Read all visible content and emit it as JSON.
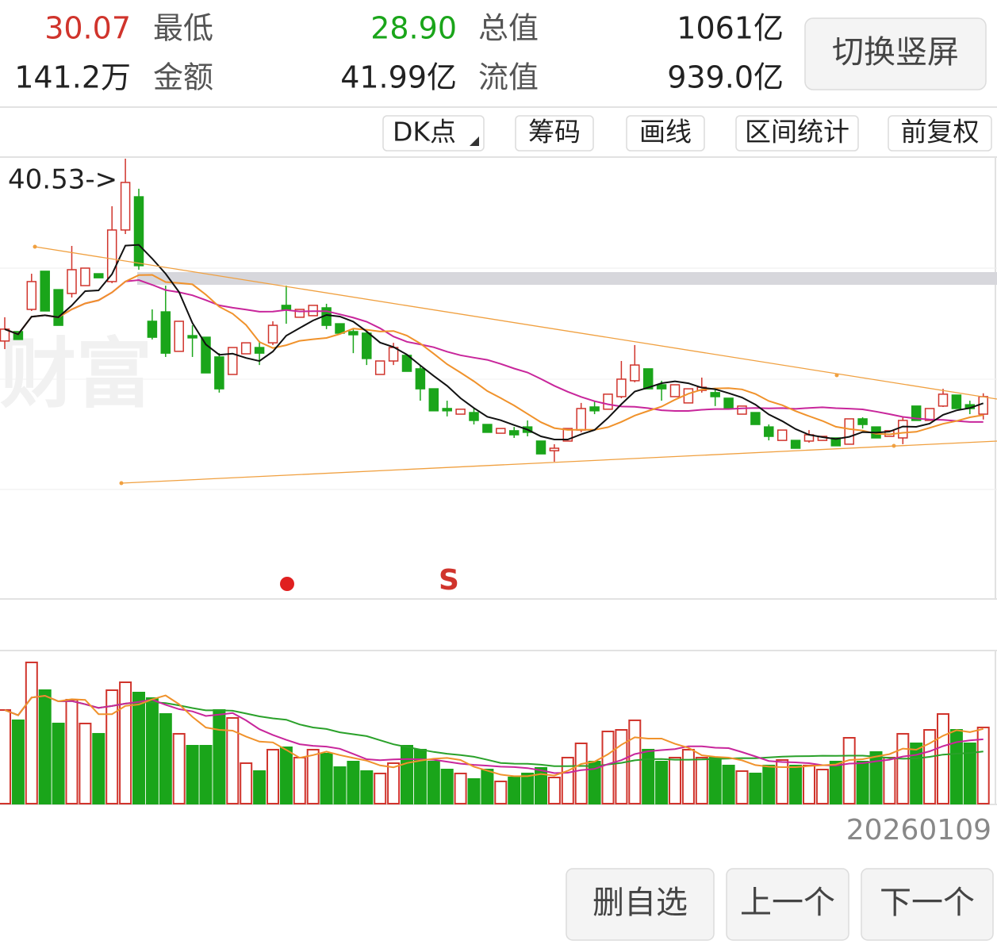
{
  "header": {
    "rows": [
      [
        "30.07",
        "最低",
        "28.90",
        "总值",
        "1061亿"
      ],
      [
        "141.2万",
        "金额",
        "41.99亿",
        "流值",
        "939.0亿"
      ]
    ],
    "button": "切换竖屏"
  },
  "toolbar": [
    "DK点",
    "筹码",
    "画线",
    "区间统计",
    "前复权"
  ],
  "kline": {
    "ylim": [
      20.9,
      40.53
    ],
    "up_color": "#d0342c",
    "down_color": "#1aa51a",
    "high_label": "40.53->",
    "watermark": "财富",
    "signal": "S",
    "candles": [
      [
        32.4,
        32.93,
        33.46,
        32.04
      ],
      [
        32.82,
        32.47,
        32.82,
        32.47
      ],
      [
        33.81,
        35.05,
        35.4,
        33.74
      ],
      [
        35.51,
        33.74,
        35.51,
        33.74
      ],
      [
        34.69,
        33.1,
        34.69,
        33.1
      ],
      [
        34.52,
        35.58,
        36.64,
        34.34
      ],
      [
        34.87,
        35.65,
        35.65,
        34.87
      ],
      [
        35.4,
        35.22,
        35.4,
        35.22
      ],
      [
        35.05,
        37.35,
        38.41,
        34.98
      ],
      [
        37.35,
        39.47,
        40.53,
        37.17
      ],
      [
        38.83,
        35.76,
        39.19,
        35.58
      ],
      [
        33.28,
        32.57,
        33.81,
        32.47
      ],
      [
        33.7,
        31.86,
        34.87,
        31.69
      ],
      [
        31.94,
        33.28,
        33.28,
        31.94
      ],
      [
        32.64,
        32.54,
        33.1,
        31.69
      ],
      [
        32.57,
        30.98,
        32.57,
        30.98
      ],
      [
        31.69,
        30.27,
        31.86,
        30.1
      ],
      [
        30.91,
        32.11,
        32.11,
        30.91
      ],
      [
        31.83,
        32.32,
        32.32,
        31.83
      ],
      [
        32.11,
        31.86,
        32.4,
        31.33
      ],
      [
        32.32,
        33.1,
        33.28,
        32.22
      ],
      [
        33.99,
        33.81,
        34.87,
        33.17
      ],
      [
        33.46,
        33.81,
        33.81,
        33.46
      ],
      [
        33.53,
        33.99,
        33.99,
        33.53
      ],
      [
        33.88,
        33.1,
        34.06,
        32.93
      ],
      [
        33.17,
        32.75,
        33.17,
        32.75
      ],
      [
        32.82,
        32.68,
        32.93,
        31.86
      ],
      [
        32.75,
        31.62,
        32.82,
        31.33
      ],
      [
        30.91,
        31.51,
        31.51,
        30.91
      ],
      [
        31.51,
        32.11,
        32.32,
        31.33
      ],
      [
        31.76,
        31.05,
        31.76,
        31.05
      ],
      [
        31.16,
        30.27,
        31.33,
        29.74
      ],
      [
        30.27,
        29.29,
        30.27,
        29.29
      ],
      [
        29.39,
        29.29,
        29.74,
        29.04
      ],
      [
        29.14,
        29.36,
        29.36,
        29.14
      ],
      [
        29.21,
        28.86,
        29.39,
        28.68
      ],
      [
        28.68,
        28.33,
        28.68,
        28.33
      ],
      [
        28.29,
        28.5,
        28.5,
        28.29
      ],
      [
        28.4,
        28.22,
        28.57,
        28.08
      ],
      [
        28.57,
        28.33,
        28.86,
        28.15
      ],
      [
        27.94,
        27.37,
        27.94,
        27.37
      ],
      [
        27.51,
        27.62,
        27.8,
        27.02
      ],
      [
        27.94,
        28.5,
        28.5,
        27.94
      ],
      [
        28.43,
        29.39,
        29.64,
        28.33
      ],
      [
        29.46,
        29.29,
        29.74,
        29.14
      ],
      [
        29.36,
        30.03,
        30.03,
        29.36
      ],
      [
        29.92,
        30.7,
        31.51,
        29.85
      ],
      [
        30.63,
        31.33,
        32.22,
        30.56
      ],
      [
        31.16,
        30.27,
        31.16,
        30.27
      ],
      [
        30.45,
        30.27,
        30.63,
        29.74
      ],
      [
        29.92,
        30.45,
        30.45,
        29.92
      ],
      [
        29.64,
        30.27,
        30.27,
        29.64
      ],
      [
        30.2,
        30.34,
        30.77,
        30.1
      ],
      [
        30.1,
        29.92,
        30.27,
        29.5
      ],
      [
        29.85,
        29.39,
        29.85,
        29.39
      ],
      [
        29.14,
        29.5,
        29.5,
        29.14
      ],
      [
        29.21,
        28.68,
        29.21,
        28.68
      ],
      [
        28.57,
        28.15,
        28.68,
        27.97
      ],
      [
        27.97,
        28.43,
        28.43,
        27.97
      ],
      [
        27.97,
        27.62,
        27.97,
        27.62
      ],
      [
        27.94,
        28.22,
        28.43,
        27.87
      ],
      [
        27.97,
        28.15,
        28.15,
        27.97
      ],
      [
        28.08,
        27.73,
        28.08,
        27.73
      ],
      [
        27.8,
        28.93,
        28.93,
        27.8
      ],
      [
        28.93,
        28.68,
        29.0,
        28.5
      ],
      [
        28.57,
        28.08,
        28.57,
        28.08
      ],
      [
        28.15,
        28.4,
        28.4,
        28.15
      ],
      [
        28.08,
        28.86,
        29.04,
        27.8
      ],
      [
        29.5,
        28.86,
        29.5,
        28.86
      ],
      [
        28.86,
        29.39,
        29.39,
        28.86
      ],
      [
        29.5,
        30.03,
        30.27,
        29.46
      ],
      [
        29.99,
        29.39,
        29.99,
        29.39
      ],
      [
        29.56,
        29.39,
        29.74,
        29.14
      ],
      [
        29.14,
        29.92,
        30.07,
        28.9
      ]
    ]
  },
  "volume": {
    "ylim": [
      0,
      283.7
    ],
    "values": [
      173.5,
      154.4,
      261.7,
      210.2,
      148.5,
      192.6,
      148.5,
      129.4,
      210.2,
      224.9,
      205.8,
      195.5,
      166.1,
      129.4,
      107.3,
      107.3,
      173.5,
      158.8,
      75.0,
      60.3,
      100.0,
      104.4,
      85.3,
      100.0,
      92.6,
      67.6,
      77.9,
      60.3,
      55.9,
      75.0,
      107.3,
      100.0,
      77.9,
      63.2,
      55.9,
      45.6,
      63.2,
      41.2,
      48.5,
      55.9,
      66.2,
      48.5,
      85.3,
      111.7,
      77.9,
      133.8,
      136.7,
      154.4,
      100.0,
      77.9,
      85.3,
      100.0,
      85.3,
      85.3,
      70.6,
      60.3,
      55.9,
      70.6,
      80.9,
      70.6,
      70.6,
      63.2,
      77.9,
      122.0,
      77.9,
      95.6,
      85.3,
      129.4,
      111.7,
      136.7,
      166.1,
      136.7,
      111.7,
      141.2
    ]
  },
  "date": "20260109",
  "buttons": [
    "删自选",
    "上一个",
    "下一个"
  ]
}
